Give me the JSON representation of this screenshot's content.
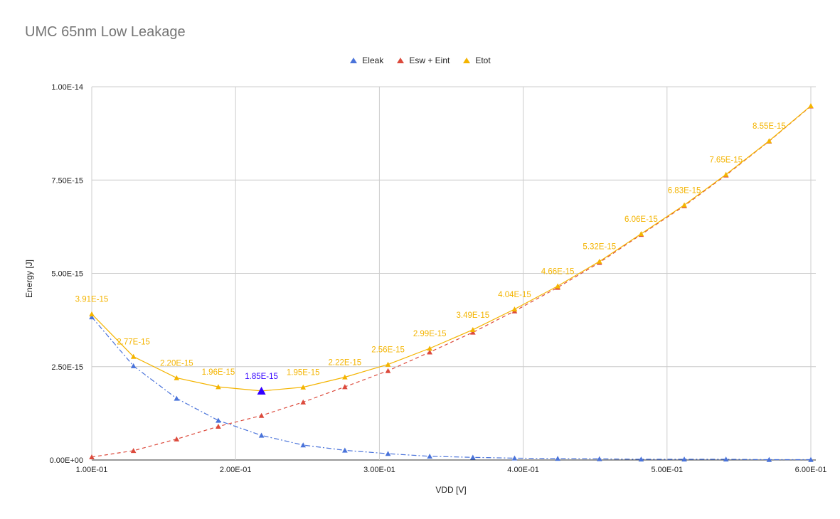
{
  "chart_data": {
    "type": "line",
    "title": "UMC 65nm Low Leakage",
    "xlabel": "VDD [V]",
    "ylabel": "Energy [J]",
    "xlim": [
      0.1,
      0.6
    ],
    "ylim": [
      0,
      1e-14
    ],
    "x_ticks": [
      "1.00E-01",
      "2.00E-01",
      "3.00E-01",
      "4.00E-01",
      "5.00E-01",
      "6.00E-01"
    ],
    "y_ticks": [
      "0.00E+00",
      "2.50E-15",
      "5.00E-15",
      "7.50E-15",
      "1.00E-14"
    ],
    "grid": true,
    "legend_position": "top",
    "x": [
      0.1,
      0.129,
      0.159,
      0.188,
      0.218,
      0.247,
      0.276,
      0.306,
      0.335,
      0.365,
      0.394,
      0.424,
      0.453,
      0.482,
      0.512,
      0.541,
      0.571,
      0.6
    ],
    "series": [
      {
        "name": "Eleak",
        "color": "#4a73da",
        "line_style": "dashdot",
        "values": [
          3.83e-15,
          2.52e-15,
          1.65e-15,
          1.06e-15,
          6.6e-16,
          4e-16,
          2.6e-16,
          1.7e-16,
          1e-16,
          7e-17,
          5e-17,
          4e-17,
          3e-17,
          2e-17,
          2e-17,
          2e-17,
          1e-17,
          1e-17
        ]
      },
      {
        "name": "Esw + Eint",
        "color": "#dc4a3c",
        "line_style": "dashed",
        "values": [
          8e-17,
          2.5e-16,
          5.6e-16,
          9e-16,
          1.19e-15,
          1.55e-15,
          1.96e-15,
          2.39e-15,
          2.89e-15,
          3.42e-15,
          3.99e-15,
          4.62e-15,
          5.29e-15,
          6.04e-15,
          6.81e-15,
          7.63e-15,
          8.54e-15,
          9.48e-15
        ]
      },
      {
        "name": "Etot",
        "color": "#f4b400",
        "line_style": "solid",
        "values": [
          3.91e-15,
          2.77e-15,
          2.2e-15,
          1.96e-15,
          1.85e-15,
          1.95e-15,
          2.22e-15,
          2.56e-15,
          2.99e-15,
          3.49e-15,
          4.04e-15,
          4.66e-15,
          5.32e-15,
          6.06e-15,
          6.83e-15,
          7.65e-15,
          8.55e-15,
          9.49e-15
        ],
        "data_labels": [
          "3.91E-15",
          "2.77E-15",
          "2.20E-15",
          "1.96E-15",
          "1.85E-15",
          "1.95E-15",
          "2.22E-15",
          "2.56E-15",
          "2.99E-15",
          "3.49E-15",
          "4.04E-15",
          "4.66E-15",
          "5.32E-15",
          "6.06E-15",
          "6.83E-15",
          "7.65E-15",
          "8.55E-15",
          ""
        ]
      }
    ],
    "highlight": {
      "series": "Etot",
      "index": 4,
      "color": "#3300ff"
    }
  }
}
